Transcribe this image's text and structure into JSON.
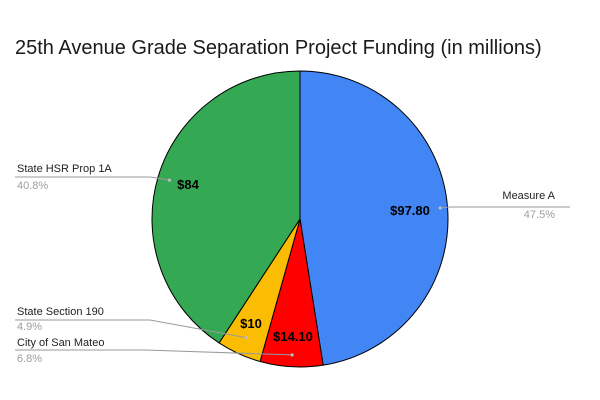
{
  "chart_data": {
    "type": "pie",
    "title": "25th Avenue Grade Separation Project Funding (in millions)",
    "slices": [
      {
        "name": "Measure A",
        "value": 97.8,
        "value_label": "$97.80",
        "percent_label": "47.5%",
        "color": "#4285F4"
      },
      {
        "name": "City of San Mateo",
        "value": 14.1,
        "value_label": "$14.10",
        "percent_label": "6.8%",
        "color": "#FF0000"
      },
      {
        "name": "State Section 190",
        "value": 10,
        "value_label": "$10",
        "percent_label": "4.9%",
        "color": "#FBBC04"
      },
      {
        "name": "State HSR Prop 1A",
        "value": 84,
        "value_label": "$84",
        "percent_label": "40.8%",
        "color": "#34A853"
      }
    ],
    "start_angle": "12 o'clock",
    "direction": "clockwise"
  }
}
